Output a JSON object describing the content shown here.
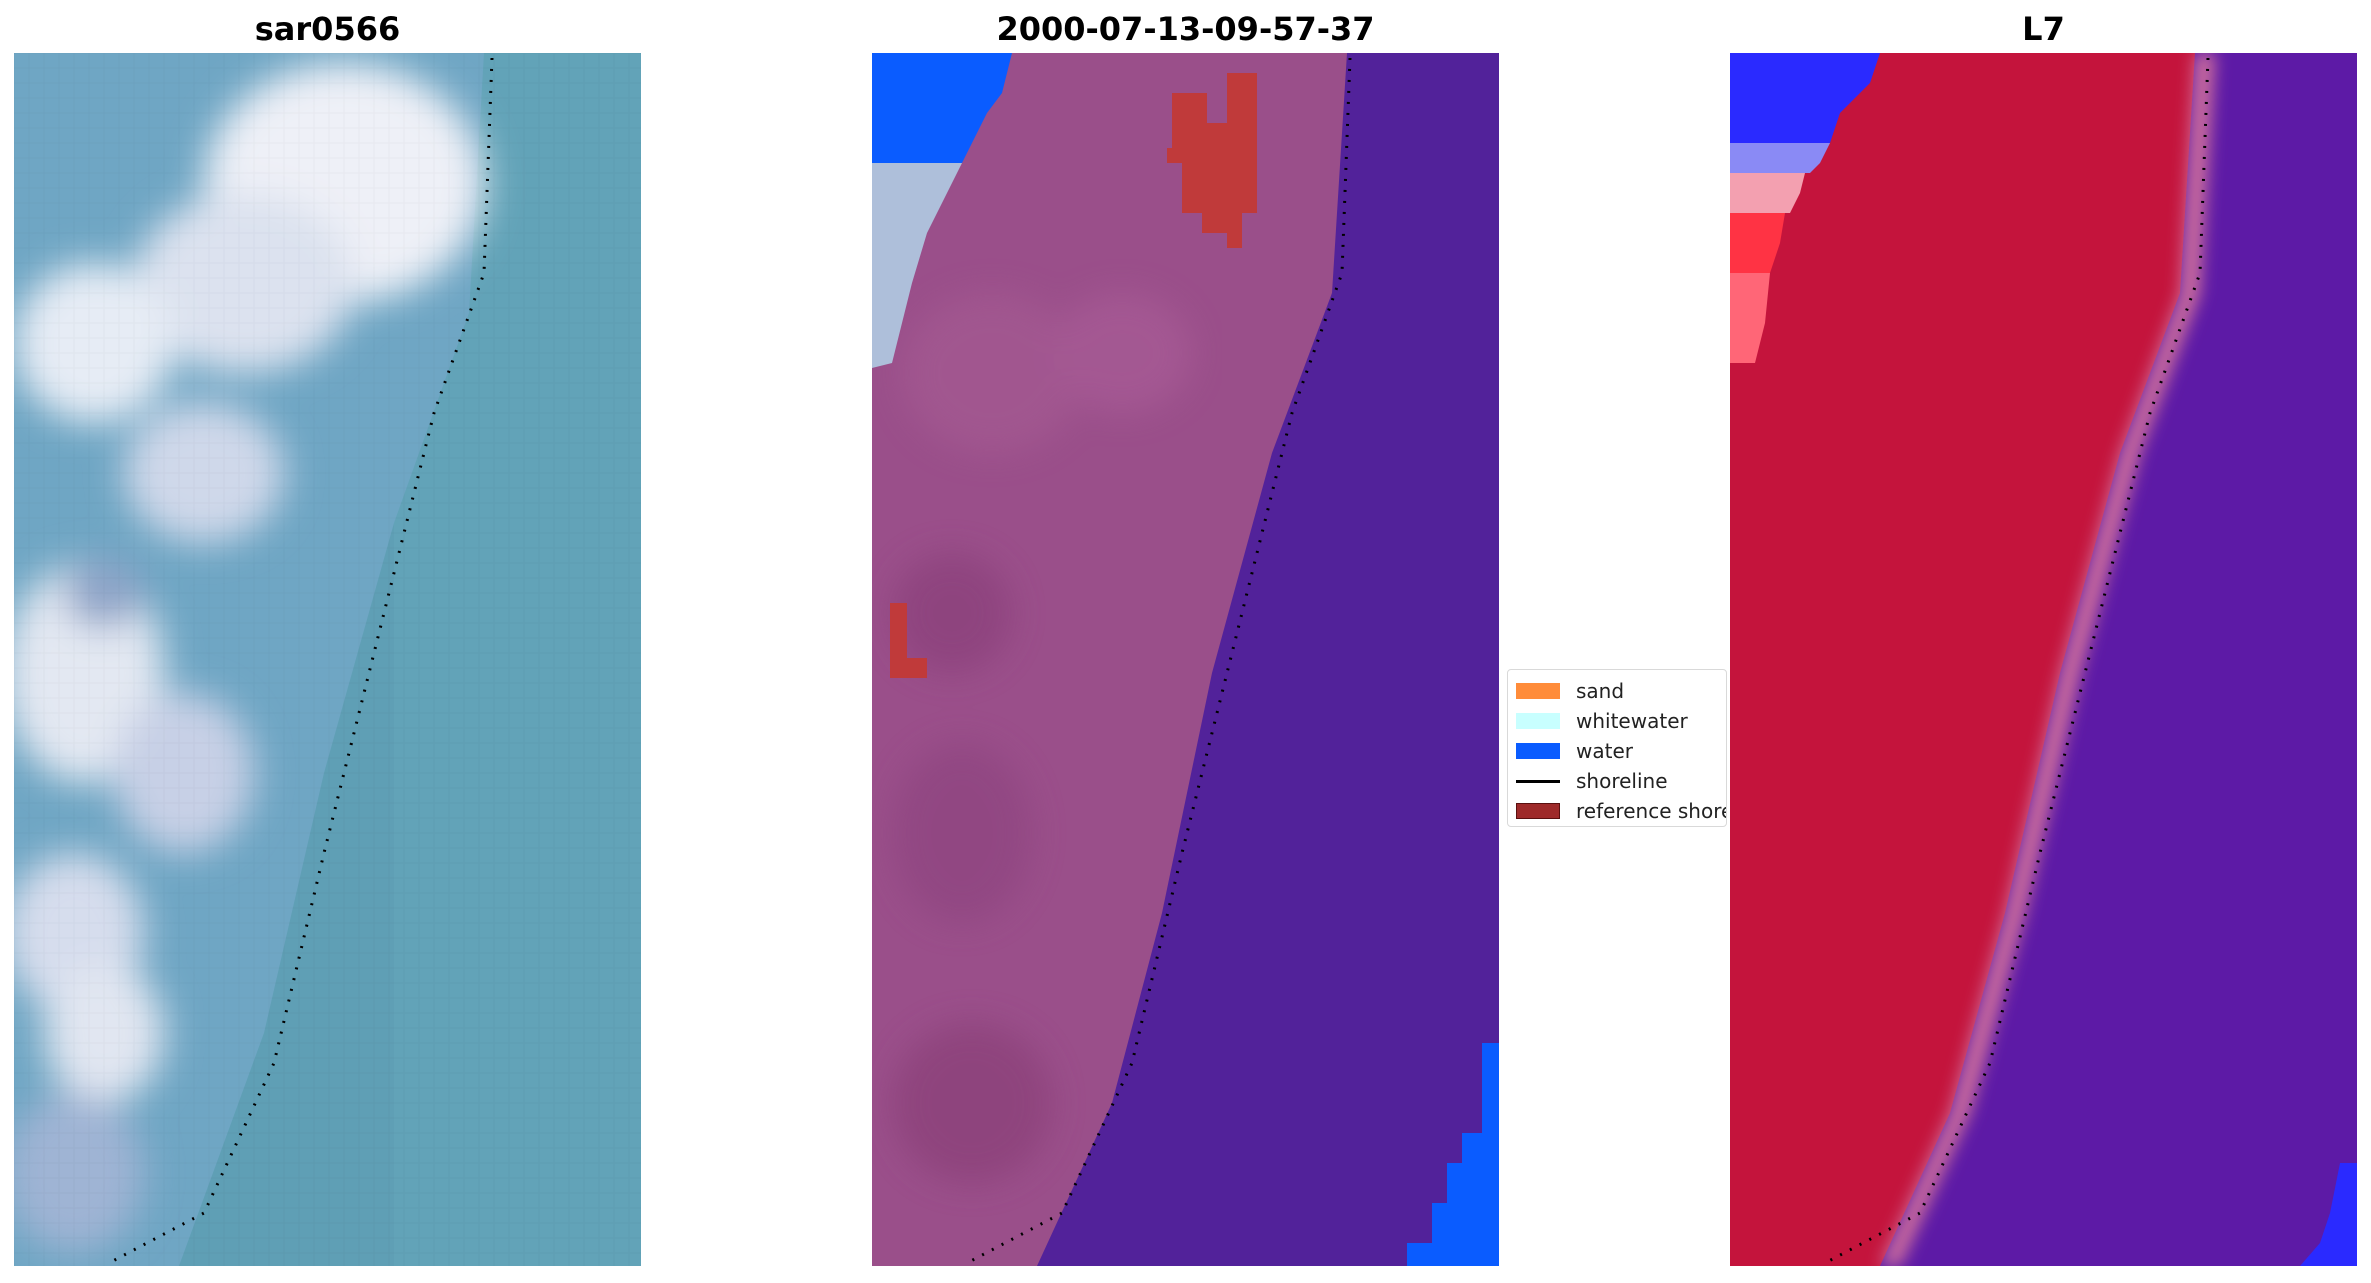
{
  "panels": [
    {
      "title": "sar0566",
      "image": "rgb-true-color"
    },
    {
      "title": "2000-07-13-09-57-37",
      "image": "classified-overlay"
    },
    {
      "title": "L7",
      "image": "mndwi-index"
    }
  ],
  "legend": {
    "items": [
      {
        "label": "sand",
        "type": "patch",
        "color": "#ff8c3a"
      },
      {
        "label": "whitewater",
        "type": "patch",
        "color": "#c8ffff"
      },
      {
        "label": "water",
        "type": "patch",
        "color": "#0a5cff"
      },
      {
        "label": "shoreline",
        "type": "line",
        "color": "#000000"
      },
      {
        "label": "reference shoreline",
        "type": "patch",
        "color": "#9e2a2a"
      }
    ]
  },
  "colors": {
    "ocean_rgb": "#5b9db3",
    "beach_rgb": "#c9d2e6",
    "land_classified": "#9a4f8a",
    "water_classified": "#52229a",
    "index_land": "#c4143c",
    "index_water": "#5d1aa6",
    "bright_blue": "#0a5cff"
  }
}
